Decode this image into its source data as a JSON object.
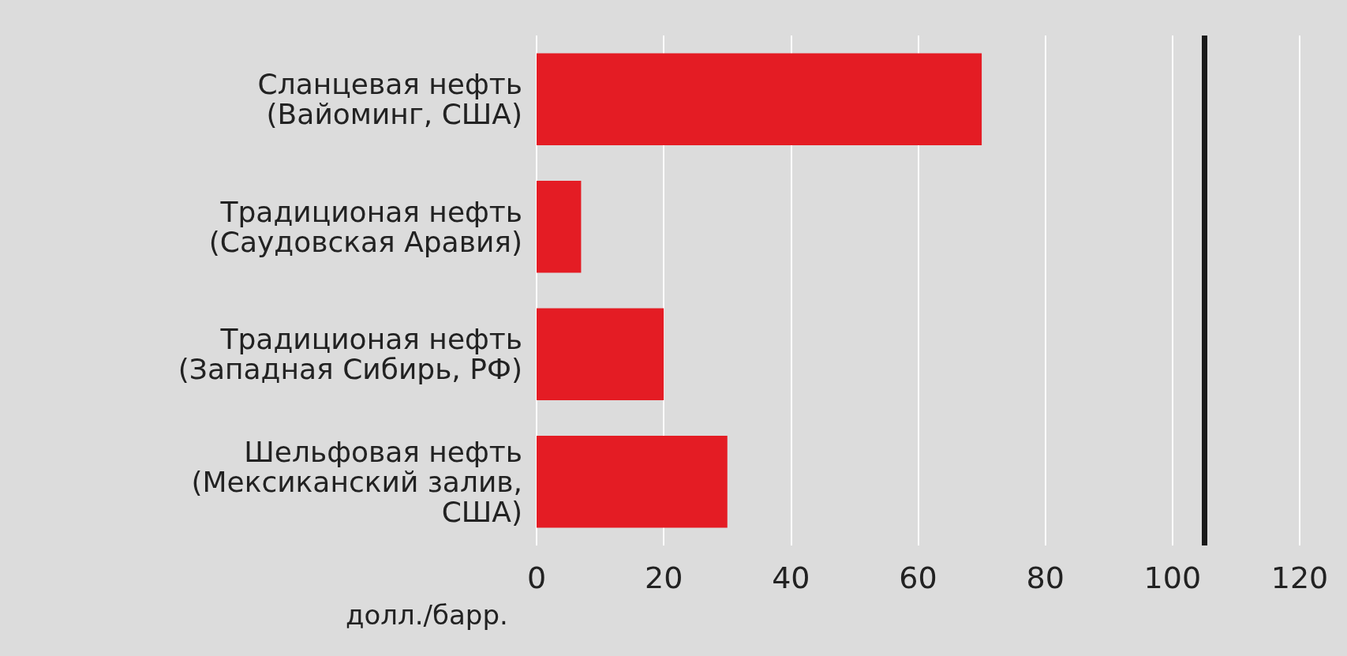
{
  "chart_data": {
    "type": "bar",
    "orientation": "horizontal",
    "categories": [
      "Сланцевая нефть\n(Вайоминг, США)",
      "Традиционая нефть\n(Саудовская Аравия)",
      "Традиционая нефть\n(Западная Сибирь, РФ)",
      "Шельфовая нефть\n(Мексиканский залив,\nСША)"
    ],
    "values": [
      70,
      7,
      20,
      30
    ],
    "color": "#e41c24",
    "xlabel": "долл./барр.",
    "xlim": [
      0,
      120
    ],
    "xticks": [
      0,
      20,
      40,
      60,
      80,
      100,
      120
    ],
    "grid": "x",
    "ref_lines": [
      {
        "axis": "x",
        "value": 105,
        "color": "#1a1a1a"
      }
    ]
  }
}
